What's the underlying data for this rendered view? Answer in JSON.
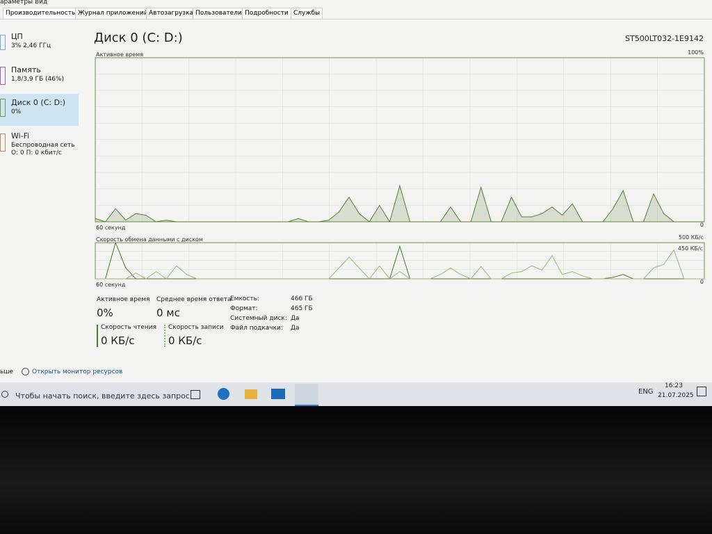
{
  "menu": [
    "араметры",
    "Вид"
  ],
  "tabs": [
    "Производительность",
    "Журнал приложений",
    "Автозагрузка",
    "Пользователи",
    "Подробности",
    "Службы"
  ],
  "sidebar": [
    {
      "title": "ЦП",
      "subtitle": "3% 2,46 ГГц"
    },
    {
      "title": "Память",
      "subtitle": "1,8/3,9 ГБ (46%)"
    },
    {
      "title": "Диск 0 (C: D:)",
      "subtitle": "0%"
    },
    {
      "title": "Wi-Fi",
      "subtitle": "Беспроводная сеть",
      "detail": "О: 0 П: 0 кбит/с"
    }
  ],
  "header": {
    "title": "Диск 0 (C: D:)",
    "model": "ST500LT032-1E9142"
  },
  "chart_data": [
    {
      "type": "area",
      "title": "Активное время",
      "x_label": "60 секунд",
      "ylim": [
        0,
        100
      ],
      "yticks": [
        0,
        {
          "value": 100,
          "label": "100%"
        }
      ],
      "series": [
        {
          "color": "#5b7f35",
          "values": [
            2,
            0,
            8,
            1,
            5,
            4,
            0,
            1,
            0,
            0,
            0,
            0,
            0,
            0,
            0,
            0,
            0,
            0,
            0,
            0,
            2,
            0,
            0,
            1,
            6,
            15,
            5,
            0,
            10,
            0,
            22,
            0,
            0,
            0,
            0,
            9,
            0,
            0,
            21,
            0,
            0,
            15,
            3,
            3,
            5,
            9,
            4,
            11,
            0,
            0,
            0,
            8,
            19,
            0,
            0,
            17,
            5,
            0,
            0,
            0,
            0
          ]
        }
      ]
    },
    {
      "type": "line",
      "title": "Скорость обмена данными с диском",
      "x_label": "60 секунд",
      "annotation": "450 КБ/с",
      "ylim": [
        0,
        500
      ],
      "yticks": [
        0,
        {
          "value": 500,
          "label": "500 КБ/с"
        }
      ],
      "series": [
        {
          "color": "#4f7a2a",
          "values": [
            0,
            0,
            500,
            150,
            0,
            0,
            0,
            0,
            0,
            0,
            0,
            0,
            0,
            0,
            0,
            0,
            0,
            0,
            0,
            0,
            0,
            0,
            0,
            0,
            0,
            0,
            0,
            0,
            0,
            0,
            450,
            0,
            0,
            0,
            0,
            0,
            0,
            0,
            0,
            0,
            0,
            0,
            0,
            0,
            0,
            0,
            0,
            0,
            0,
            0,
            0,
            20,
            60,
            0,
            0,
            0,
            0,
            0,
            0,
            0,
            0
          ]
        },
        {
          "color": "#9bb87a",
          "values": [
            0,
            0,
            0,
            0,
            80,
            0,
            100,
            0,
            180,
            60,
            0,
            0,
            0,
            0,
            0,
            0,
            0,
            0,
            0,
            0,
            0,
            0,
            0,
            0,
            150,
            300,
            150,
            0,
            180,
            0,
            100,
            0,
            0,
            0,
            60,
            150,
            60,
            0,
            170,
            0,
            0,
            80,
            100,
            180,
            120,
            320,
            60,
            100,
            40,
            0,
            0,
            0,
            0,
            0,
            0,
            150,
            200,
            400,
            0,
            0,
            0
          ]
        }
      ]
    }
  ],
  "stats": [
    {
      "label": "Активное время",
      "value": "0%"
    },
    {
      "label": "Среднее время ответа",
      "value": "0 мс"
    },
    {
      "label": "Скорость чтения",
      "value": "0 КБ/с"
    },
    {
      "label": "Скорость записи",
      "value": "0 КБ/с"
    }
  ],
  "properties": [
    {
      "label": "Емкость:",
      "value": "466 ГБ"
    },
    {
      "label": "Формат:",
      "value": "465 ГБ"
    },
    {
      "label": "Системный диск:",
      "value": "Да"
    },
    {
      "label": "Файл подкачки:",
      "value": "Да"
    }
  ],
  "footer": {
    "fewer": "ьше",
    "link": "Открыть монитор ресурсов"
  },
  "taskbar": {
    "search": "Чтобы начать поиск, введите здесь запрос",
    "lang": "ENG",
    "time": "16:23",
    "date": "21.07.2025"
  }
}
